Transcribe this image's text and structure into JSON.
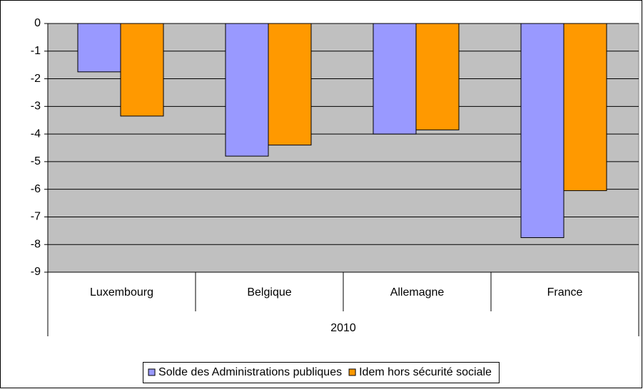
{
  "chart_data": {
    "type": "bar",
    "categories": [
      "Luxembourg",
      "Belgique",
      "Allemagne",
      "France"
    ],
    "category_group": "2010",
    "series": [
      {
        "name": "Solde des Administrations publiques",
        "color": "#9999ff",
        "values": [
          -1.75,
          -4.8,
          -4.0,
          -7.75
        ]
      },
      {
        "name": "Idem hors sécurité sociale",
        "color": "#ff9900",
        "values": [
          -3.35,
          -4.4,
          -3.85,
          -6.05
        ]
      }
    ],
    "ylim": [
      -9,
      0
    ],
    "yticks": [
      0,
      -1,
      -2,
      -3,
      -4,
      -5,
      -6,
      -7,
      -8,
      -9
    ],
    "grid": true,
    "plot_background": "#c0c0c0",
    "legend": "bottom"
  }
}
